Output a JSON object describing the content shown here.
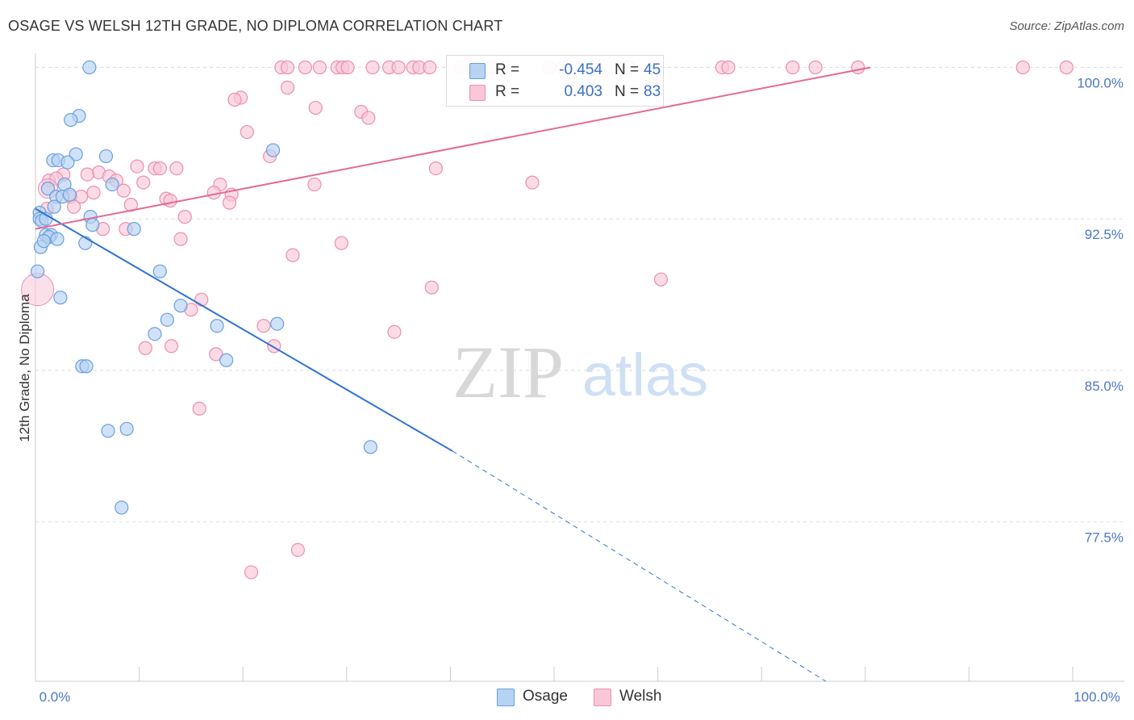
{
  "title": "OSAGE VS WELSH 12TH GRADE, NO DIPLOMA CORRELATION CHART",
  "source": "Source: ZipAtlas.com",
  "watermark": {
    "zip": "ZIP",
    "atlas": "atlas"
  },
  "colors": {
    "osage_fill": "#b7d2f2",
    "osage_stroke": "#6a9fe0",
    "osage_line": "#2f73d1",
    "welsh_fill": "#f9c7d7",
    "welsh_stroke": "#ec8fb0",
    "welsh_line": "#e36a94",
    "tick_text": "#4a78c7",
    "grid": "#dddddd"
  },
  "legend": {
    "r_label": "R =",
    "n_label": "N =",
    "osage": {
      "r": "-0.454",
      "n": "45"
    },
    "welsh": {
      "r": "0.403",
      "n": "83"
    }
  },
  "bottom_legend": {
    "osage": "Osage",
    "welsh": "Welsh"
  },
  "chart_data": {
    "type": "scatter",
    "title": "OSAGE VS WELSH 12TH GRADE, NO DIPLOMA CORRELATION CHART",
    "xlabel": "",
    "ylabel": "12th Grade, No Diploma",
    "xlim": [
      0,
      100
    ],
    "ylim": [
      69.6,
      100.7
    ],
    "x_tick_labels": [
      "0.0%",
      "100.0%"
    ],
    "y_ticks": [
      77.5,
      85.0,
      92.5,
      100.0
    ],
    "y_tick_labels": [
      "77.5%",
      "85.0%",
      "92.5%",
      "100.0%"
    ],
    "grid": true,
    "legend_position": "top-center",
    "series": [
      {
        "name": "Osage",
        "points": [
          [
            5.2,
            100.0
          ],
          [
            4.2,
            97.6
          ],
          [
            3.4,
            97.4
          ],
          [
            3.9,
            95.7
          ],
          [
            6.8,
            95.6
          ],
          [
            1.7,
            95.4
          ],
          [
            2.2,
            95.4
          ],
          [
            3.1,
            95.3
          ],
          [
            22.9,
            95.9
          ],
          [
            2.8,
            94.2
          ],
          [
            7.4,
            94.2
          ],
          [
            1.2,
            94.0
          ],
          [
            2.0,
            93.6
          ],
          [
            2.6,
            93.6
          ],
          [
            3.3,
            93.7
          ],
          [
            0.4,
            92.8
          ],
          [
            1.8,
            93.1
          ],
          [
            0.4,
            92.5
          ],
          [
            5.3,
            92.6
          ],
          [
            0.6,
            92.4
          ],
          [
            5.5,
            92.2
          ],
          [
            9.5,
            92.0
          ],
          [
            1.0,
            91.7
          ],
          [
            1.5,
            91.7
          ],
          [
            1.3,
            91.6
          ],
          [
            2.1,
            91.5
          ],
          [
            4.8,
            91.3
          ],
          [
            0.5,
            91.1
          ],
          [
            0.2,
            89.9
          ],
          [
            12.0,
            89.9
          ],
          [
            2.4,
            88.6
          ],
          [
            14.0,
            88.2
          ],
          [
            12.7,
            87.5
          ],
          [
            23.3,
            87.3
          ],
          [
            17.5,
            87.2
          ],
          [
            11.5,
            86.8
          ],
          [
            18.4,
            85.5
          ],
          [
            4.5,
            85.2
          ],
          [
            4.9,
            85.2
          ],
          [
            8.8,
            82.1
          ],
          [
            7.0,
            82.0
          ],
          [
            32.3,
            81.2
          ],
          [
            8.3,
            78.2
          ],
          [
            1.0,
            92.5
          ],
          [
            0.8,
            91.4
          ]
        ],
        "trend": {
          "x0": 0.0,
          "y0": 93.0,
          "x1": 40.2,
          "y1": 81.0,
          "dash_to_x": 76.2,
          "dash_to_y": 69.6
        }
      },
      {
        "name": "Welsh",
        "points": [
          [
            23.7,
            100.0
          ],
          [
            24.3,
            100.0
          ],
          [
            26.0,
            100.0
          ],
          [
            27.4,
            100.0
          ],
          [
            29.1,
            100.0
          ],
          [
            29.6,
            100.0
          ],
          [
            30.1,
            100.0
          ],
          [
            32.5,
            100.0
          ],
          [
            34.1,
            100.0
          ],
          [
            35.0,
            100.0
          ],
          [
            36.4,
            100.0
          ],
          [
            37.0,
            100.0
          ],
          [
            38.0,
            100.0
          ],
          [
            41.0,
            100.0
          ],
          [
            42.1,
            100.0
          ],
          [
            44.0,
            100.0
          ],
          [
            45.3,
            100.0
          ],
          [
            49.5,
            100.0
          ],
          [
            50.8,
            100.0
          ],
          [
            52.0,
            100.0
          ],
          [
            57.2,
            100.0
          ],
          [
            66.2,
            100.0
          ],
          [
            66.8,
            100.0
          ],
          [
            73.0,
            100.0
          ],
          [
            75.2,
            100.0
          ],
          [
            79.3,
            100.0
          ],
          [
            95.2,
            100.0
          ],
          [
            99.4,
            100.0
          ],
          [
            24.3,
            99.0
          ],
          [
            19.8,
            98.5
          ],
          [
            19.2,
            98.4
          ],
          [
            27.0,
            98.0
          ],
          [
            31.4,
            97.8
          ],
          [
            32.1,
            97.5
          ],
          [
            20.4,
            96.8
          ],
          [
            22.6,
            95.6
          ],
          [
            9.8,
            95.1
          ],
          [
            11.5,
            95.0
          ],
          [
            12.0,
            95.0
          ],
          [
            13.6,
            95.0
          ],
          [
            38.6,
            95.0
          ],
          [
            6.1,
            94.8
          ],
          [
            2.7,
            94.7
          ],
          [
            1.3,
            94.4
          ],
          [
            2.0,
            94.5
          ],
          [
            5.0,
            94.7
          ],
          [
            7.1,
            94.6
          ],
          [
            7.8,
            94.4
          ],
          [
            10.4,
            94.3
          ],
          [
            17.8,
            94.2
          ],
          [
            26.9,
            94.2
          ],
          [
            47.9,
            94.3
          ],
          [
            8.5,
            93.9
          ],
          [
            17.2,
            93.8
          ],
          [
            18.9,
            93.7
          ],
          [
            5.6,
            93.8
          ],
          [
            3.4,
            93.6
          ],
          [
            4.4,
            93.6
          ],
          [
            12.6,
            93.5
          ],
          [
            13.0,
            93.4
          ],
          [
            18.7,
            93.3
          ],
          [
            9.2,
            93.2
          ],
          [
            3.7,
            93.1
          ],
          [
            1.1,
            93.0
          ],
          [
            14.4,
            92.6
          ],
          [
            6.5,
            92.0
          ],
          [
            8.7,
            92.0
          ],
          [
            14.0,
            91.5
          ],
          [
            29.5,
            91.3
          ],
          [
            24.8,
            90.7
          ],
          [
            60.3,
            89.5
          ],
          [
            38.2,
            89.1
          ],
          [
            16.0,
            88.5
          ],
          [
            15.0,
            88.0
          ],
          [
            22.0,
            87.2
          ],
          [
            34.6,
            86.9
          ],
          [
            13.1,
            86.2
          ],
          [
            10.6,
            86.1
          ],
          [
            23.0,
            86.2
          ],
          [
            17.4,
            85.8
          ],
          [
            15.8,
            83.1
          ],
          [
            25.3,
            76.1
          ],
          [
            20.8,
            75.0
          ]
        ],
        "trend": {
          "x0": 0.0,
          "y0": 92.0,
          "x1": 80.5,
          "y1": 100.0
        }
      }
    ]
  }
}
